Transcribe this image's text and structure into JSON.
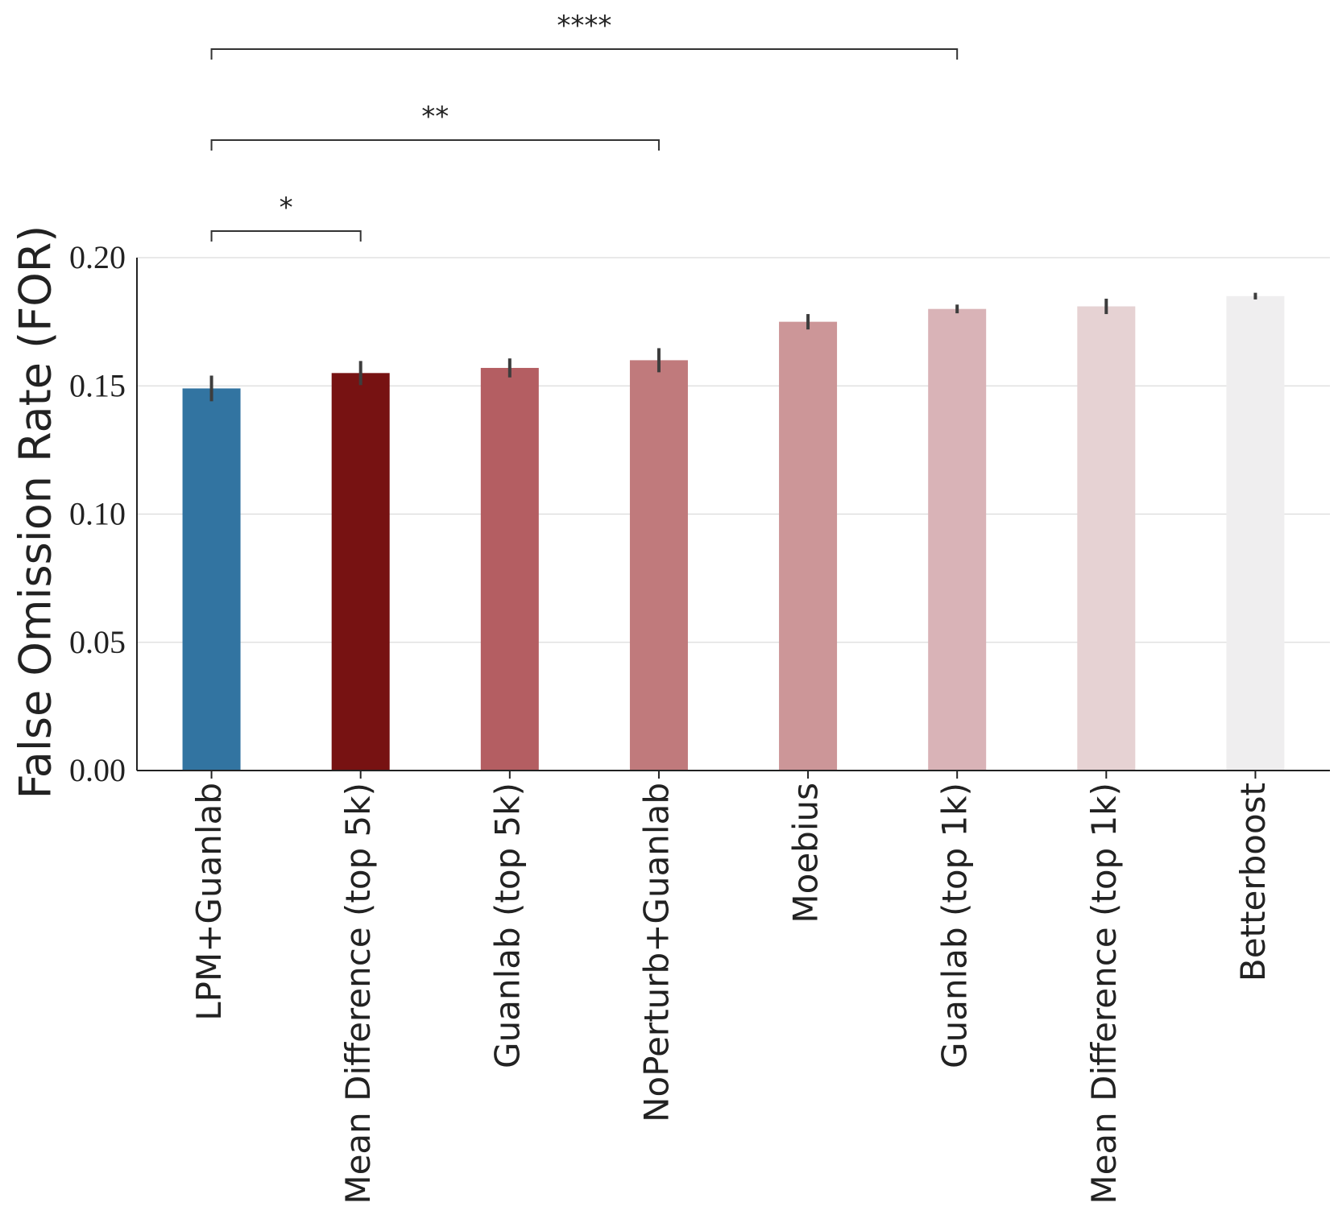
{
  "chart_data": {
    "type": "bar",
    "y_label": "False Omission Rate (FOR)",
    "categories": [
      "LPM+Guanlab",
      "Mean Difference (top 5k)",
      "Guanlab (top 5k)",
      "NoPerturb+Guanlab",
      "Moebius",
      "Guanlab (top 1k)",
      "Mean Difference (top 1k)",
      "Betterboost"
    ],
    "values": [
      0.149,
      0.155,
      0.157,
      0.16,
      0.175,
      0.18,
      0.181,
      0.185
    ],
    "errors": [
      0.005,
      0.0047,
      0.0037,
      0.0047,
      0.003,
      0.0017,
      0.003,
      0.0013
    ],
    "colors": [
      "#3274a1",
      "#771212",
      "#b45e62",
      "#c07a7c",
      "#cc9698",
      "#d9b3b7",
      "#e6d2d3",
      "#efeeef"
    ],
    "ylim": [
      0,
      0.2
    ],
    "yticks": [
      {
        "value": 0,
        "label": "0.00"
      },
      0.05,
      {
        "value": 0.1,
        "label": "0.10"
      },
      0.15,
      {
        "value": 0.2,
        "label": "0.20"
      }
    ],
    "grid": true,
    "annotations": [
      {
        "text": "*",
        "from": 0,
        "to": 1
      },
      {
        "text": "**",
        "from": 0,
        "to": 3
      },
      {
        "text": "****",
        "from": 0,
        "to": 5
      }
    ]
  }
}
